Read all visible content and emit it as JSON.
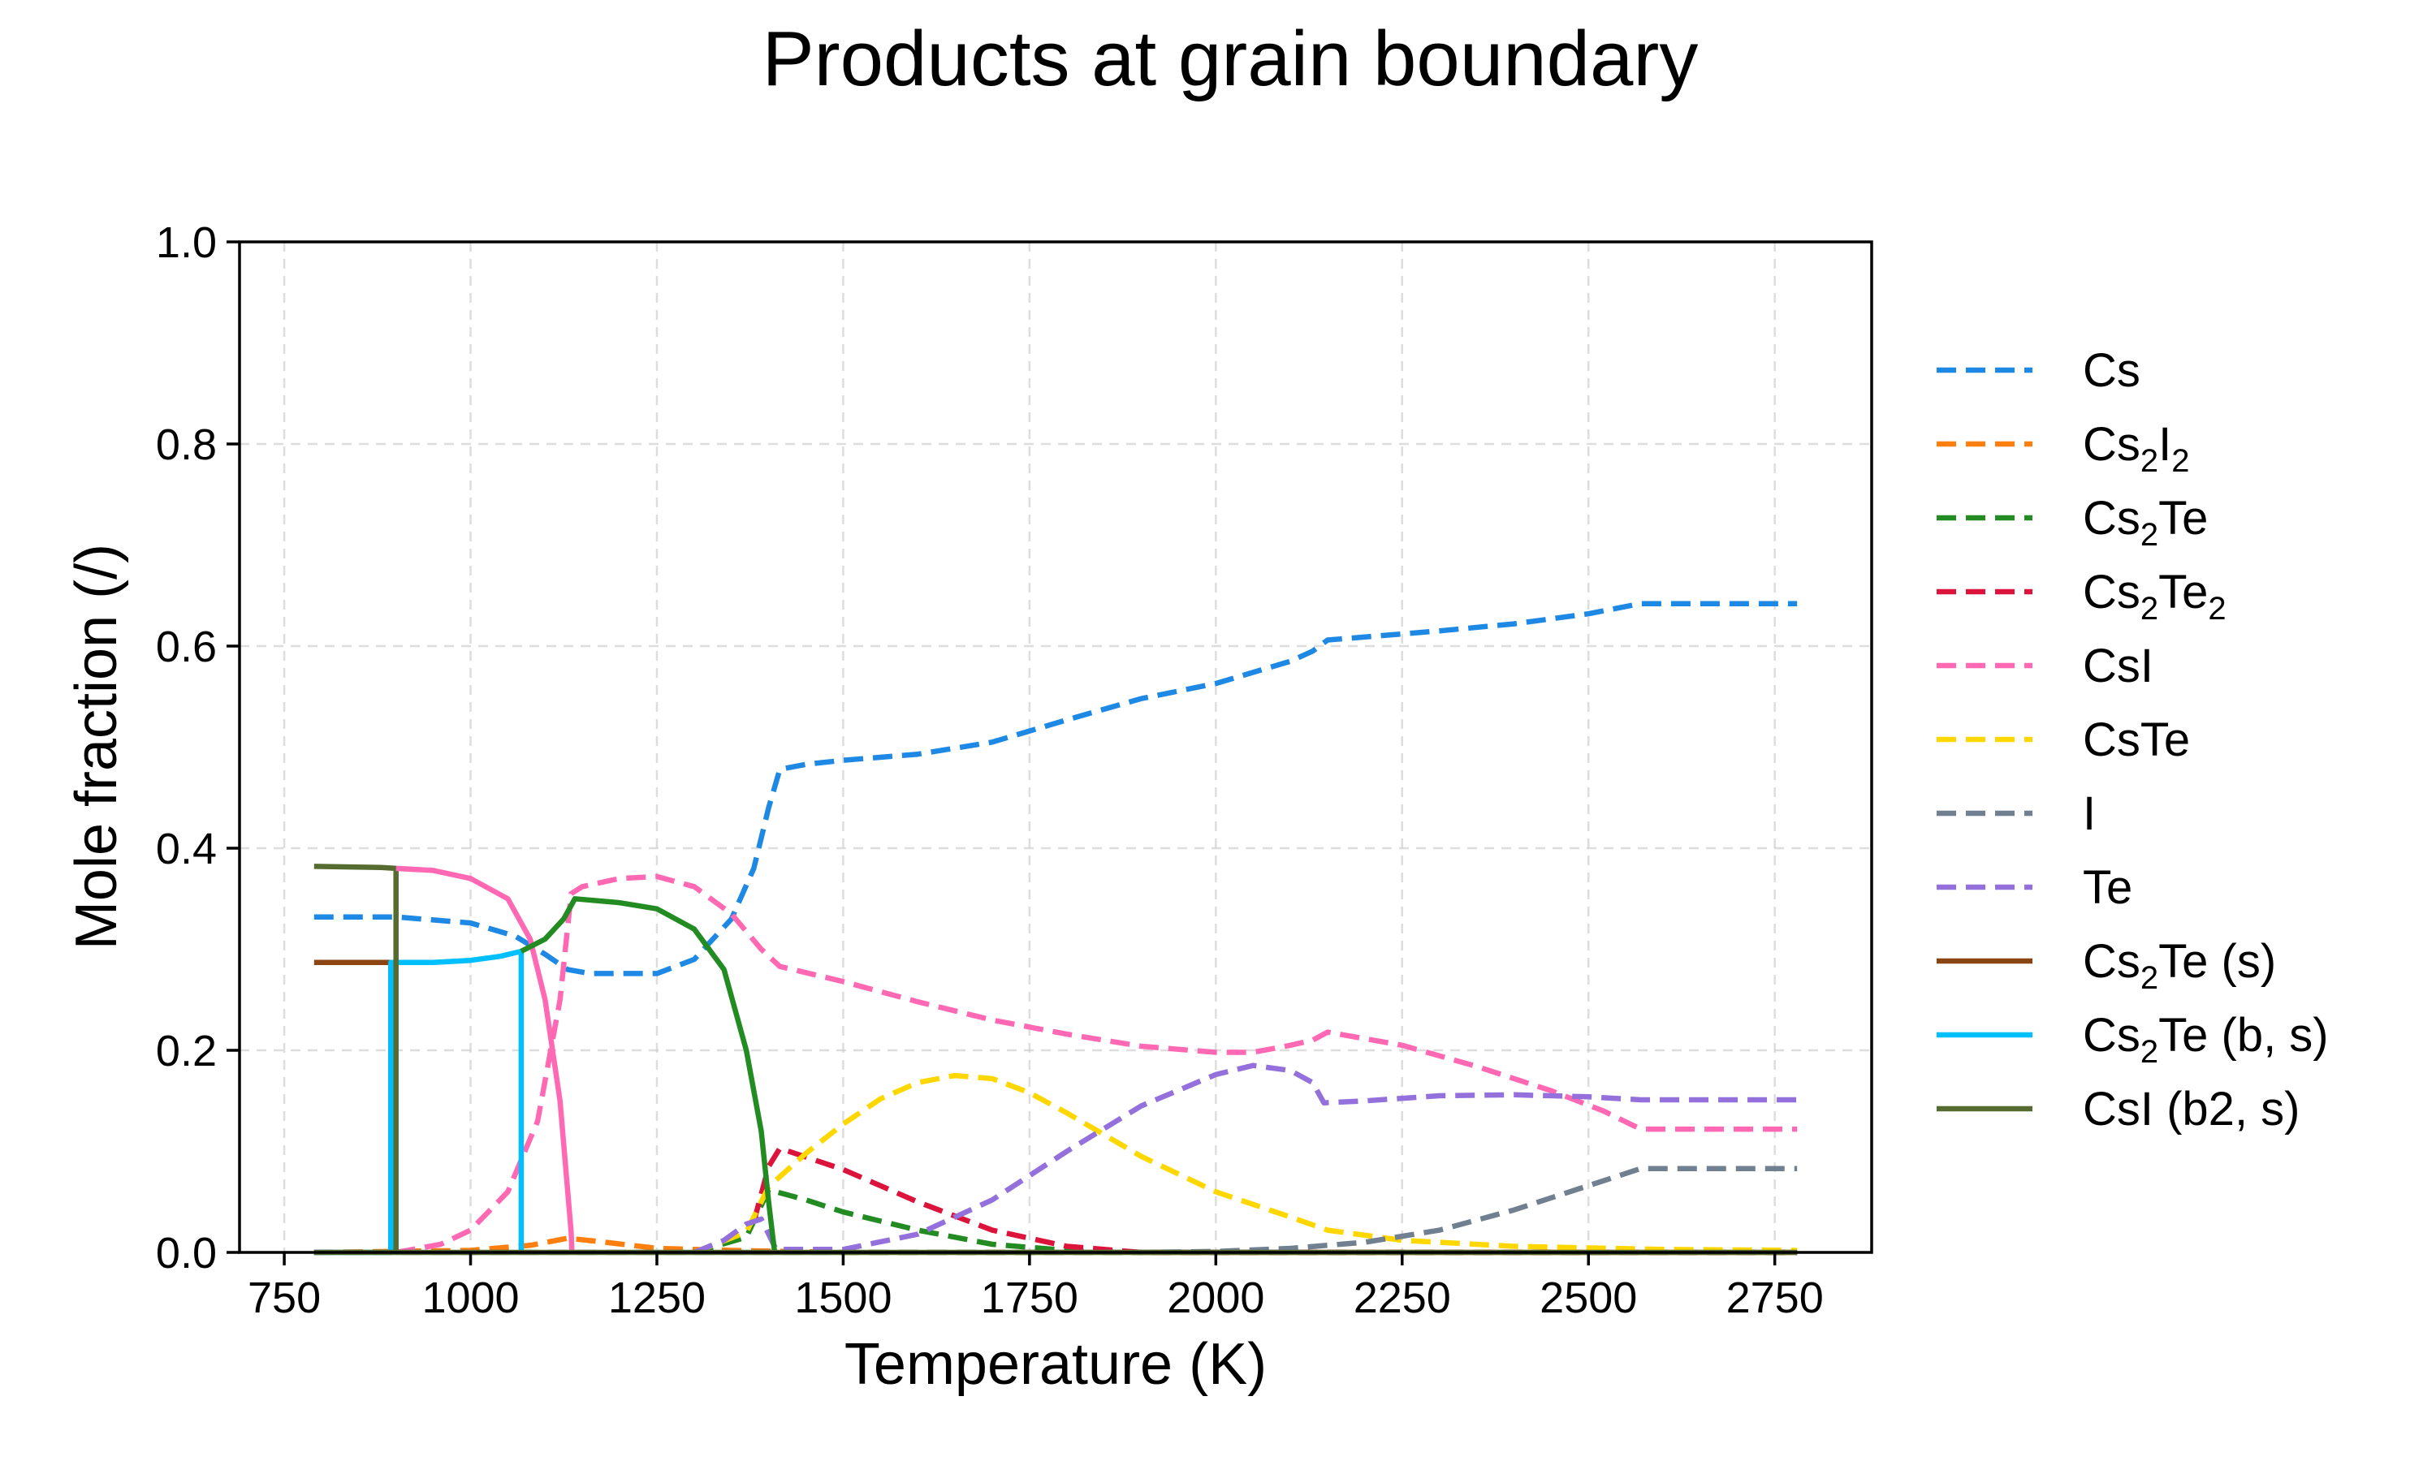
{
  "chart_data": {
    "type": "line",
    "title": "Products at grain boundary",
    "xlabel": "Temperature (K)",
    "ylabel": "Mole fraction (/)",
    "xlim": [
      690,
      2880
    ],
    "ylim": [
      0,
      1.0
    ],
    "xticks": [
      750,
      1000,
      1250,
      1500,
      1750,
      2000,
      2250,
      2500,
      2750
    ],
    "yticks": [
      0.0,
      0.2,
      0.4,
      0.6,
      0.8,
      1.0
    ],
    "xtick_labels": [
      "750",
      "1000",
      "1250",
      "1500",
      "1750",
      "2000",
      "2250",
      "2500",
      "2750"
    ],
    "ytick_labels": [
      "0.0",
      "0.2",
      "0.4",
      "0.6",
      "0.8",
      "1.0"
    ],
    "grid": true,
    "legend_position": "outside-right",
    "series": [
      {
        "name": "Cs",
        "base": "Cs",
        "sub": "",
        "rest": "",
        "sub2": "",
        "rest2": "",
        "color": "#1E88E5",
        "dash": true,
        "points": [
          [
            790,
            0.332
          ],
          [
            900,
            0.332
          ],
          [
            1000,
            0.326
          ],
          [
            1060,
            0.313
          ],
          [
            1100,
            0.295
          ],
          [
            1130,
            0.28
          ],
          [
            1160,
            0.276
          ],
          [
            1250,
            0.276
          ],
          [
            1300,
            0.29
          ],
          [
            1350,
            0.33
          ],
          [
            1380,
            0.38
          ],
          [
            1400,
            0.44
          ],
          [
            1415,
            0.478
          ],
          [
            1450,
            0.483
          ],
          [
            1500,
            0.487
          ],
          [
            1600,
            0.493
          ],
          [
            1700,
            0.505
          ],
          [
            1800,
            0.527
          ],
          [
            1900,
            0.548
          ],
          [
            2000,
            0.563
          ],
          [
            2100,
            0.585
          ],
          [
            2130,
            0.595
          ],
          [
            2150,
            0.606
          ],
          [
            2300,
            0.615
          ],
          [
            2400,
            0.622
          ],
          [
            2500,
            0.632
          ],
          [
            2570,
            0.642
          ],
          [
            2700,
            0.642
          ],
          [
            2780,
            0.642
          ]
        ]
      },
      {
        "name": "Cs2I2",
        "base": "Cs",
        "sub": "2",
        "rest": "I",
        "sub2": "2",
        "rest2": "",
        "color": "#FF7F0E",
        "dash": true,
        "points": [
          [
            790,
            0.0
          ],
          [
            1000,
            0.002
          ],
          [
            1080,
            0.007
          ],
          [
            1130,
            0.014
          ],
          [
            1170,
            0.011
          ],
          [
            1250,
            0.004
          ],
          [
            1350,
            0.002
          ],
          [
            1500,
            0.0
          ],
          [
            2780,
            0.0
          ]
        ]
      },
      {
        "name": "Cs2Te",
        "base": "Cs",
        "sub": "2",
        "rest": "Te",
        "sub2": "",
        "rest2": "",
        "color": "#228B22",
        "dash": true,
        "points": [
          [
            1300,
            0.0
          ],
          [
            1370,
            0.015
          ],
          [
            1400,
            0.062
          ],
          [
            1450,
            0.052
          ],
          [
            1500,
            0.04
          ],
          [
            1600,
            0.022
          ],
          [
            1700,
            0.008
          ],
          [
            1800,
            0.002
          ],
          [
            1900,
            0.0
          ],
          [
            2780,
            0.0
          ]
        ]
      },
      {
        "name": "Cs2Te2",
        "base": "Cs",
        "sub": "2",
        "rest": "Te",
        "sub2": "2",
        "rest2": "",
        "color": "#DC143C",
        "dash": true,
        "points": [
          [
            1380,
            0.03
          ],
          [
            1400,
            0.085
          ],
          [
            1415,
            0.103
          ],
          [
            1500,
            0.082
          ],
          [
            1600,
            0.05
          ],
          [
            1700,
            0.022
          ],
          [
            1800,
            0.006
          ],
          [
            1900,
            0.0
          ],
          [
            2780,
            0.0
          ]
        ]
      },
      {
        "name": "CsI",
        "base": "CsI",
        "sub": "",
        "rest": "",
        "sub2": "",
        "rest2": "",
        "color": "#FF69B4",
        "dash": true,
        "points": [
          [
            900,
            0.0
          ],
          [
            960,
            0.008
          ],
          [
            1000,
            0.022
          ],
          [
            1050,
            0.06
          ],
          [
            1090,
            0.13
          ],
          [
            1120,
            0.25
          ],
          [
            1135,
            0.355
          ],
          [
            1150,
            0.362
          ],
          [
            1200,
            0.37
          ],
          [
            1250,
            0.372
          ],
          [
            1300,
            0.362
          ],
          [
            1350,
            0.335
          ],
          [
            1390,
            0.3
          ],
          [
            1415,
            0.283
          ],
          [
            1500,
            0.268
          ],
          [
            1600,
            0.248
          ],
          [
            1700,
            0.23
          ],
          [
            1800,
            0.216
          ],
          [
            1900,
            0.204
          ],
          [
            2000,
            0.198
          ],
          [
            2050,
            0.198
          ],
          [
            2100,
            0.205
          ],
          [
            2130,
            0.21
          ],
          [
            2150,
            0.218
          ],
          [
            2250,
            0.205
          ],
          [
            2350,
            0.184
          ],
          [
            2450,
            0.16
          ],
          [
            2520,
            0.14
          ],
          [
            2570,
            0.122
          ],
          [
            2700,
            0.122
          ],
          [
            2780,
            0.122
          ]
        ]
      },
      {
        "name": "CsTe",
        "base": "CsTe",
        "sub": "",
        "rest": "",
        "sub2": "",
        "rest2": "",
        "color": "#FFD700",
        "dash": true,
        "points": [
          [
            1300,
            0.0
          ],
          [
            1370,
            0.02
          ],
          [
            1400,
            0.065
          ],
          [
            1450,
            0.098
          ],
          [
            1500,
            0.127
          ],
          [
            1550,
            0.152
          ],
          [
            1600,
            0.168
          ],
          [
            1650,
            0.175
          ],
          [
            1700,
            0.172
          ],
          [
            1750,
            0.158
          ],
          [
            1800,
            0.138
          ],
          [
            1900,
            0.095
          ],
          [
            2000,
            0.06
          ],
          [
            2100,
            0.035
          ],
          [
            2150,
            0.022
          ],
          [
            2250,
            0.012
          ],
          [
            2400,
            0.006
          ],
          [
            2600,
            0.003
          ],
          [
            2780,
            0.002
          ]
        ]
      },
      {
        "name": "I",
        "base": "I",
        "sub": "",
        "rest": "",
        "sub2": "",
        "rest2": "",
        "color": "#708090",
        "dash": true,
        "points": [
          [
            790,
            0.0
          ],
          [
            1900,
            0.0
          ],
          [
            2000,
            0.001
          ],
          [
            2100,
            0.004
          ],
          [
            2200,
            0.01
          ],
          [
            2300,
            0.022
          ],
          [
            2400,
            0.042
          ],
          [
            2500,
            0.066
          ],
          [
            2570,
            0.083
          ],
          [
            2700,
            0.083
          ],
          [
            2780,
            0.083
          ]
        ]
      },
      {
        "name": "Te",
        "base": "Te",
        "sub": "",
        "rest": "",
        "sub2": "",
        "rest2": "",
        "color": "#9370DB",
        "dash": true,
        "points": [
          [
            1300,
            0.0
          ],
          [
            1340,
            0.012
          ],
          [
            1370,
            0.028
          ],
          [
            1390,
            0.033
          ],
          [
            1410,
            0.003
          ],
          [
            1500,
            0.003
          ],
          [
            1600,
            0.018
          ],
          [
            1700,
            0.052
          ],
          [
            1800,
            0.1
          ],
          [
            1900,
            0.145
          ],
          [
            2000,
            0.176
          ],
          [
            2050,
            0.185
          ],
          [
            2100,
            0.18
          ],
          [
            2130,
            0.168
          ],
          [
            2145,
            0.148
          ],
          [
            2200,
            0.15
          ],
          [
            2300,
            0.155
          ],
          [
            2400,
            0.156
          ],
          [
            2500,
            0.154
          ],
          [
            2570,
            0.151
          ],
          [
            2700,
            0.151
          ],
          [
            2780,
            0.151
          ]
        ]
      },
      {
        "name": "Cs2Te (s)",
        "base": "Cs",
        "sub": "2",
        "rest": "Te (s)",
        "sub2": "",
        "rest2": "",
        "color": "#8B4513",
        "dash": false,
        "points": [
          [
            790,
            0.287
          ],
          [
            893,
            0.287
          ],
          [
            893,
            0.0
          ]
        ]
      },
      {
        "name": "Cs2Te (b, s)",
        "base": "Cs",
        "sub": "2",
        "rest": "Te (b, s)",
        "sub2": "",
        "rest2": "",
        "color": "#00BFFF",
        "dash": false,
        "points": [
          [
            790,
            0.0
          ],
          [
            893,
            0.0
          ],
          [
            893,
            0.287
          ],
          [
            950,
            0.287
          ],
          [
            1000,
            0.289
          ],
          [
            1040,
            0.293
          ],
          [
            1068,
            0.298
          ],
          [
            1068,
            0.0
          ]
        ]
      },
      {
        "name": "CsI (b2, s)",
        "base": "CsI (b2, s)",
        "sub": "",
        "rest": "",
        "sub2": "",
        "rest2": "",
        "color": "#556B2F",
        "dash": false,
        "points": [
          [
            790,
            0.382
          ],
          [
            880,
            0.381
          ],
          [
            900,
            0.38
          ],
          [
            900,
            0.0
          ]
        ]
      },
      {
        "name": "CsI (s)",
        "legend": false,
        "color": "#FF69B4",
        "dash": false,
        "points": [
          [
            900,
            0.38
          ],
          [
            950,
            0.378
          ],
          [
            1000,
            0.37
          ],
          [
            1050,
            0.35
          ],
          [
            1080,
            0.31
          ],
          [
            1100,
            0.25
          ],
          [
            1120,
            0.15
          ],
          [
            1135,
            0.02
          ],
          [
            1136,
            0.0
          ]
        ]
      },
      {
        "name": "Cs2Te (l)",
        "legend": false,
        "color": "#228B22",
        "dash": false,
        "points": [
          [
            1068,
            0.298
          ],
          [
            1100,
            0.31
          ],
          [
            1125,
            0.33
          ],
          [
            1140,
            0.35
          ],
          [
            1200,
            0.346
          ],
          [
            1250,
            0.34
          ],
          [
            1300,
            0.32
          ],
          [
            1340,
            0.28
          ],
          [
            1370,
            0.2
          ],
          [
            1390,
            0.12
          ],
          [
            1400,
            0.05
          ],
          [
            1408,
            0.0
          ]
        ]
      },
      {
        "name": "baseline",
        "legend": false,
        "color": "#556B2F",
        "dash": false,
        "points": [
          [
            790,
            0.0
          ],
          [
            2780,
            0.0
          ]
        ]
      }
    ]
  }
}
